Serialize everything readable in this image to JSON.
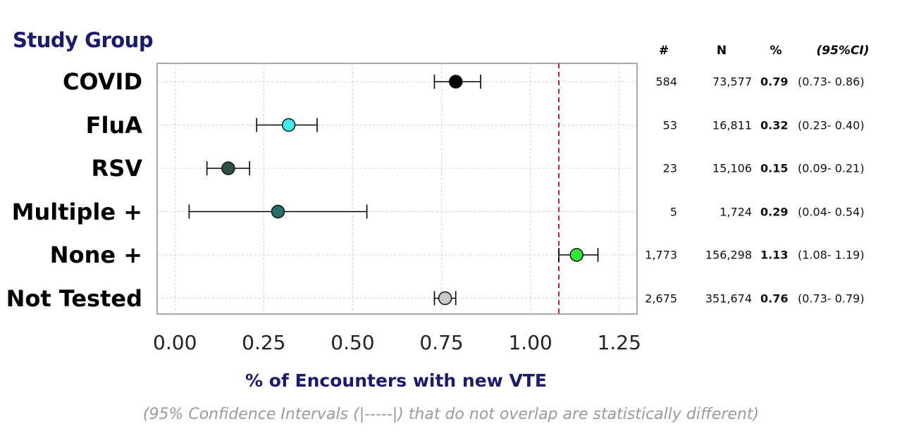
{
  "title": "Study Group",
  "table_headers": {
    "count": "#",
    "n": "N",
    "pct": "%",
    "ci": "(95%CI)"
  },
  "chart_data": {
    "type": "scatter",
    "subtype": "forest-plot",
    "categories": [
      "COVID",
      "FluA",
      "RSV",
      "Multiple +",
      "None +",
      "Not Tested"
    ],
    "estimate": [
      0.79,
      0.32,
      0.15,
      0.29,
      1.13,
      0.76
    ],
    "ci_low": [
      0.73,
      0.23,
      0.09,
      0.04,
      1.08,
      0.73
    ],
    "ci_high": [
      0.86,
      0.4,
      0.21,
      0.54,
      1.19,
      0.79
    ],
    "marker_colors": [
      "#000000",
      "#3ee8ec",
      "#2f4f4a",
      "#23706b",
      "#33e633",
      "#c8c8c8"
    ],
    "reference_line_x": 1.08,
    "reference_line_color": "#c0282b",
    "xlim": [
      -0.05,
      1.3
    ],
    "xticks": [
      "0.00",
      "0.25",
      "0.50",
      "0.75",
      "1.00",
      "1.25"
    ],
    "xtick_values": [
      0.0,
      0.25,
      0.5,
      0.75,
      1.0,
      1.25
    ],
    "xlabel": "% of Encounters with new VTE",
    "grid": true,
    "footnote": "(95% Confidence Intervals (|-----|) that do not overlap are statistically different)"
  },
  "table_rows": [
    {
      "count": "584",
      "n": "73,577",
      "pct": "0.79",
      "ci": "(0.73- 0.86)"
    },
    {
      "count": "53",
      "n": "16,811",
      "pct": "0.32",
      "ci": "(0.23- 0.40)"
    },
    {
      "count": "23",
      "n": "15,106",
      "pct": "0.15",
      "ci": "(0.09- 0.21)"
    },
    {
      "count": "5",
      "n": "1,724",
      "pct": "0.29",
      "ci": "(0.04- 0.54)"
    },
    {
      "count": "1,773",
      "n": "156,298",
      "pct": "1.13",
      "ci": "(1.08- 1.19)"
    },
    {
      "count": "2,675",
      "n": "351,674",
      "pct": "0.76",
      "ci": "(0.73- 0.79)"
    }
  ]
}
